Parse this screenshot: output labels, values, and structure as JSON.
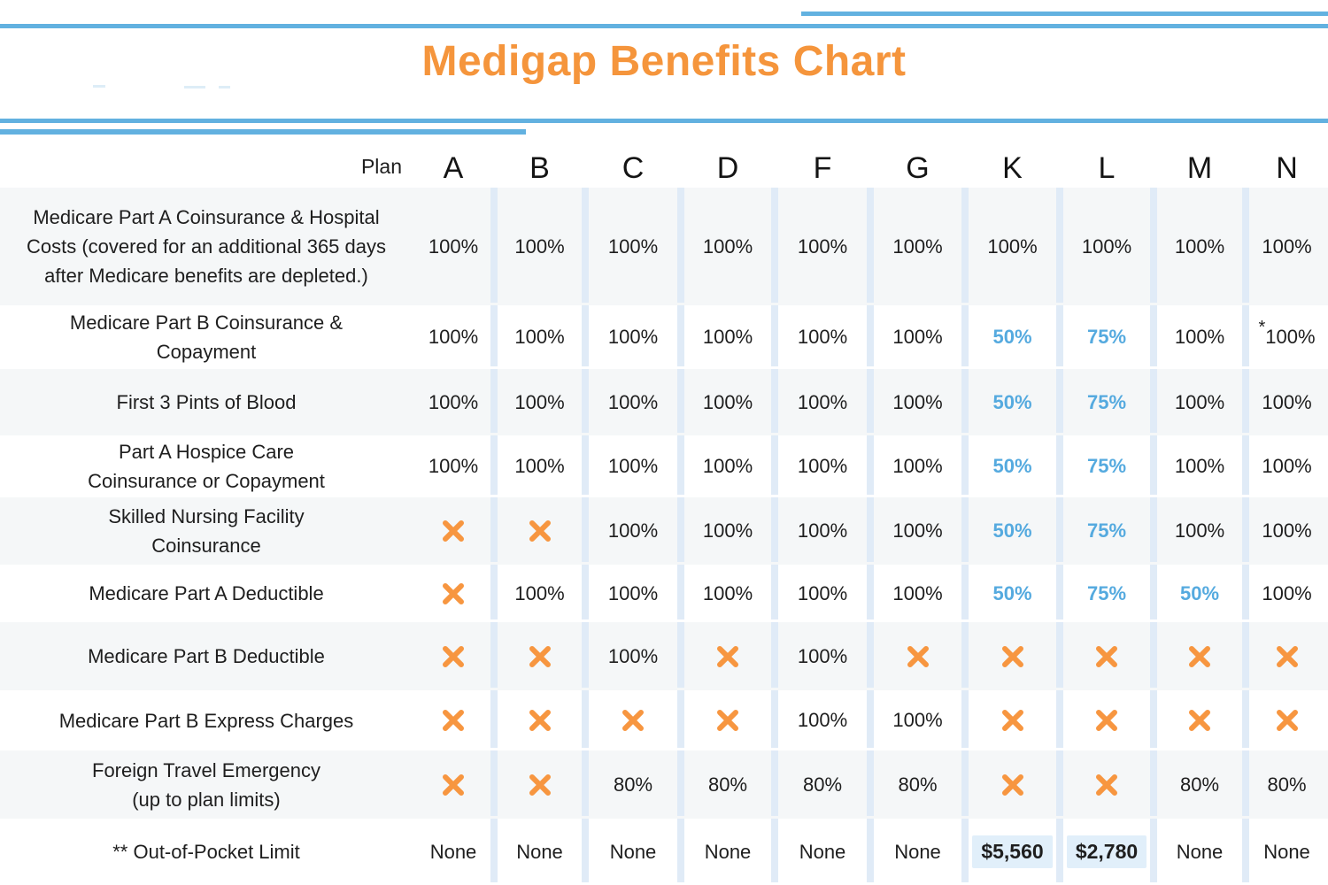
{
  "colors": {
    "orange": "#F5953C",
    "blue_line": "#62B1E0",
    "blue_text": "#55AADF",
    "stripe": "#E0EBF7",
    "row_alt_bg": "#F5F7F8",
    "highlight_bg": "#E1EFFA",
    "x_mark": "#F79640",
    "text": "#1E1E1E"
  },
  "chart_data": {
    "type": "table",
    "title": "Medigap Benefits Chart",
    "plan_label": "Plan",
    "columns": [
      "A",
      "B",
      "C",
      "D",
      "F",
      "G",
      "K",
      "L",
      "M",
      "N"
    ],
    "rows": [
      {
        "label": "Medicare Part A Coinsurance & Hospital\nCosts (covered for an additional 365 days\nafter Medicare benefits are depleted.)",
        "cells": [
          {
            "v": "100%"
          },
          {
            "v": "100%"
          },
          {
            "v": "100%"
          },
          {
            "v": "100%"
          },
          {
            "v": "100%"
          },
          {
            "v": "100%"
          },
          {
            "v": "100%"
          },
          {
            "v": "100%"
          },
          {
            "v": "100%"
          },
          {
            "v": "100%"
          }
        ]
      },
      {
        "label": "Medicare Part B Coinsurance &\nCopayment",
        "cells": [
          {
            "v": "100%"
          },
          {
            "v": "100%"
          },
          {
            "v": "100%"
          },
          {
            "v": "100%"
          },
          {
            "v": "100%"
          },
          {
            "v": "100%"
          },
          {
            "v": "50%",
            "c": "blue"
          },
          {
            "v": "75%",
            "c": "blue"
          },
          {
            "v": "100%"
          },
          {
            "v": "100%",
            "prefix": "*"
          }
        ]
      },
      {
        "label": "First 3 Pints of Blood",
        "cells": [
          {
            "v": "100%"
          },
          {
            "v": "100%"
          },
          {
            "v": "100%"
          },
          {
            "v": "100%"
          },
          {
            "v": "100%"
          },
          {
            "v": "100%"
          },
          {
            "v": "50%",
            "c": "blue"
          },
          {
            "v": "75%",
            "c": "blue"
          },
          {
            "v": "100%"
          },
          {
            "v": "100%"
          }
        ]
      },
      {
        "label": "Part A Hospice Care\nCoinsurance or Copayment",
        "cells": [
          {
            "v": "100%"
          },
          {
            "v": "100%"
          },
          {
            "v": "100%"
          },
          {
            "v": "100%"
          },
          {
            "v": "100%"
          },
          {
            "v": "100%"
          },
          {
            "v": "50%",
            "c": "blue"
          },
          {
            "v": "75%",
            "c": "blue"
          },
          {
            "v": "100%"
          },
          {
            "v": "100%"
          }
        ]
      },
      {
        "label": "Skilled Nursing Facility\nCoinsurance",
        "cells": [
          {
            "v": "X"
          },
          {
            "v": "X"
          },
          {
            "v": "100%"
          },
          {
            "v": "100%"
          },
          {
            "v": "100%"
          },
          {
            "v": "100%"
          },
          {
            "v": "50%",
            "c": "blue"
          },
          {
            "v": "75%",
            "c": "blue"
          },
          {
            "v": "100%"
          },
          {
            "v": "100%"
          }
        ]
      },
      {
        "label": "Medicare Part A Deductible",
        "cells": [
          {
            "v": "X"
          },
          {
            "v": "100%"
          },
          {
            "v": "100%"
          },
          {
            "v": "100%"
          },
          {
            "v": "100%"
          },
          {
            "v": "100%"
          },
          {
            "v": "50%",
            "c": "blue"
          },
          {
            "v": "75%",
            "c": "blue"
          },
          {
            "v": "50%",
            "c": "blue"
          },
          {
            "v": "100%"
          }
        ]
      },
      {
        "label": "Medicare Part B Deductible",
        "cells": [
          {
            "v": "X"
          },
          {
            "v": "X"
          },
          {
            "v": "100%"
          },
          {
            "v": "X"
          },
          {
            "v": "100%"
          },
          {
            "v": "X"
          },
          {
            "v": "X"
          },
          {
            "v": "X"
          },
          {
            "v": "X"
          },
          {
            "v": "X"
          }
        ]
      },
      {
        "label": "Medicare Part B Express Charges",
        "cells": [
          {
            "v": "X"
          },
          {
            "v": "X"
          },
          {
            "v": "X"
          },
          {
            "v": "X"
          },
          {
            "v": "100%"
          },
          {
            "v": "100%"
          },
          {
            "v": "X"
          },
          {
            "v": "X"
          },
          {
            "v": "X"
          },
          {
            "v": "X"
          }
        ]
      },
      {
        "label": "Foreign Travel Emergency\n(up to plan limits)",
        "cells": [
          {
            "v": "X"
          },
          {
            "v": "X"
          },
          {
            "v": "80%"
          },
          {
            "v": "80%"
          },
          {
            "v": "80%"
          },
          {
            "v": "80%"
          },
          {
            "v": "X"
          },
          {
            "v": "X"
          },
          {
            "v": "80%"
          },
          {
            "v": "80%"
          }
        ]
      },
      {
        "label": "** Out-of-Pocket Limit",
        "cells": [
          {
            "v": "None"
          },
          {
            "v": "None"
          },
          {
            "v": "None"
          },
          {
            "v": "None"
          },
          {
            "v": "None"
          },
          {
            "v": "None"
          },
          {
            "v": "$5,560",
            "hl": true
          },
          {
            "v": "$2,780",
            "hl": true
          },
          {
            "v": "None"
          },
          {
            "v": "None"
          }
        ]
      }
    ]
  }
}
